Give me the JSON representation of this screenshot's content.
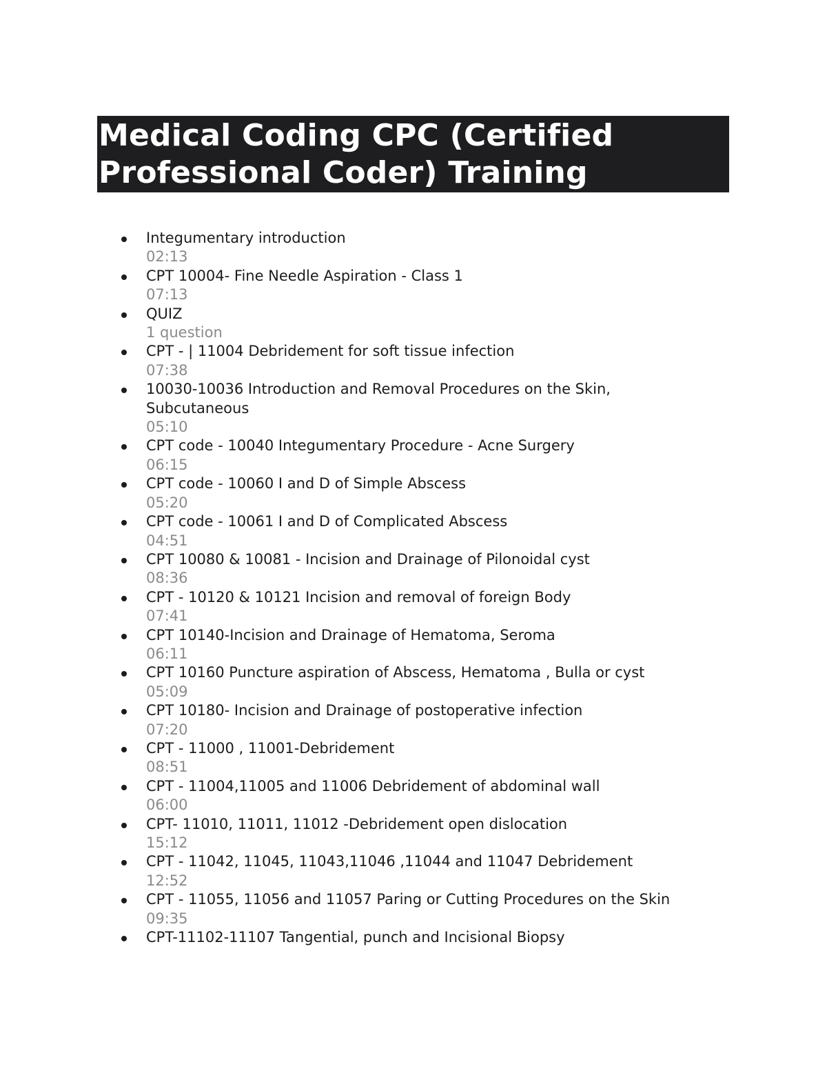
{
  "document": {
    "title": "Medical Coding CPC (Certified Professional Coder) Training",
    "lessons": [
      {
        "name": "Integumentary introduction",
        "duration": "02:13"
      },
      {
        "name": "CPT 10004- Fine Needle Aspiration - Class 1",
        "duration": "07:13"
      },
      {
        "name": "QUIZ",
        "duration": "1 question"
      },
      {
        "name": "CPT - | 11004 Debridement for soft tissue infection",
        "duration": "07:38"
      },
      {
        "name": "10030-10036 Introduction and Removal Procedures on the Skin, Subcutaneous",
        "duration": "05:10"
      },
      {
        "name": "CPT code - 10040 Integumentary Procedure - Acne Surgery",
        "duration": "06:15"
      },
      {
        "name": "CPT code - 10060 I and D of Simple Abscess",
        "duration": "05:20"
      },
      {
        "name": "CPT code - 10061 I and D of Complicated Abscess",
        "duration": "04:51"
      },
      {
        "name": "CPT 10080 & 10081 - Incision and Drainage of Pilonoidal cyst",
        "duration": "08:36"
      },
      {
        "name": "CPT - 10120 & 10121 Incision and removal of foreign Body",
        "duration": "07:41"
      },
      {
        "name": "CPT 10140-Incision and Drainage of Hematoma, Seroma",
        "duration": "06:11"
      },
      {
        "name": "CPT 10160 Puncture aspiration of Abscess, Hematoma , Bulla or cyst",
        "duration": "05:09"
      },
      {
        "name": "CPT 10180- Incision and Drainage of postoperative infection",
        "duration": "07:20"
      },
      {
        "name": "CPT - 11000 , 11001-Debridement",
        "duration": "08:51"
      },
      {
        "name": "CPT - 11004,11005 and 11006 Debridement of abdominal wall",
        "duration": "06:00"
      },
      {
        "name": "CPT- 11010, 11011, 11012 -Debridement open dislocation",
        "duration": "15:12"
      },
      {
        "name": "CPT - 11042, 11045, 11043,11046 ,11044 and 11047 Debridement",
        "duration": "12:52"
      },
      {
        "name": "CPT - 11055, 11056 and 11057 Paring or Cutting Procedures on the Skin",
        "duration": "09:35"
      },
      {
        "name": "CPT-11102-11107 Tangential, punch and Incisional Biopsy"
      }
    ]
  },
  "colors": {
    "title_bg": "#1e1e20",
    "title_text": "#ffffff",
    "duration_text": "#8a8a8a"
  }
}
